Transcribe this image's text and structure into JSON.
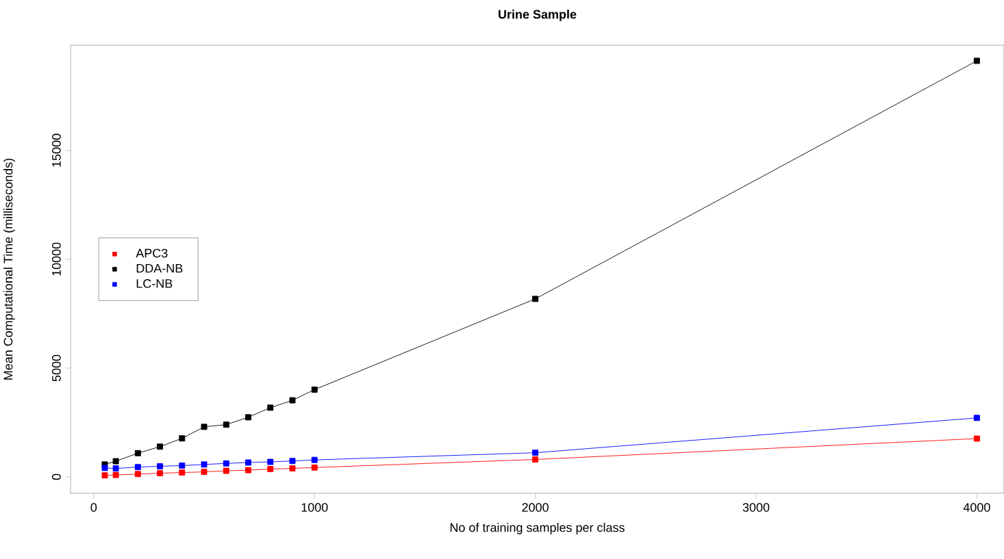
{
  "chart_data": {
    "type": "line",
    "title": "Urine Sample",
    "xlabel": "No of training samples per class",
    "ylabel": "Mean Computational Time (milliseconds)",
    "x": [
      50,
      100,
      200,
      300,
      400,
      500,
      600,
      700,
      800,
      900,
      1000,
      2000,
      4000
    ],
    "series": [
      {
        "name": "APC3",
        "color": "#ff0000",
        "values": [
          70,
          90,
          130,
          170,
          200,
          230,
          280,
          310,
          360,
          390,
          430,
          800,
          1760
        ]
      },
      {
        "name": "DDA-NB",
        "color": "#000000",
        "values": [
          570,
          720,
          1090,
          1390,
          1770,
          2300,
          2400,
          2740,
          3180,
          3520,
          4010,
          8180,
          19120
        ]
      },
      {
        "name": "LC-NB",
        "color": "#0000ff",
        "values": [
          410,
          390,
          450,
          490,
          520,
          570,
          620,
          660,
          690,
          730,
          780,
          1110,
          2710
        ]
      }
    ],
    "xlim": [
      -105,
      4123
    ],
    "ylim": [
      -755,
      19840
    ],
    "xticks": [
      0,
      1000,
      2000,
      3000,
      4000
    ],
    "yticks": [
      0,
      5000,
      10000,
      15000
    ],
    "grid": false,
    "legend": "left",
    "marker": "square",
    "line_style": "solid"
  }
}
